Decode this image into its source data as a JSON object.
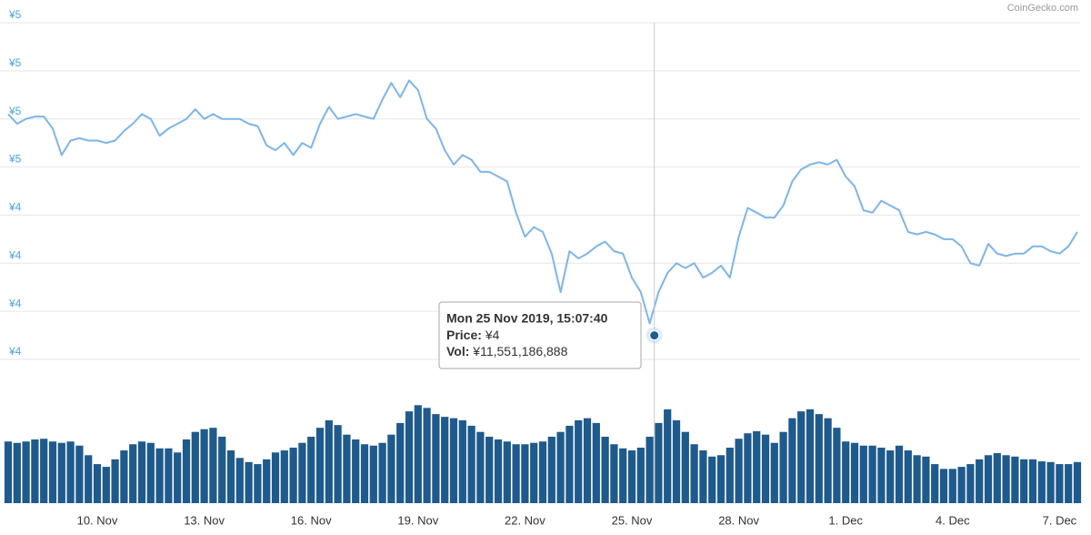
{
  "chart_data": {
    "type": "line",
    "credit": "CoinGecko.com",
    "x": [
      "2019-11-07T12:00",
      "2019-11-07T18:00",
      "2019-11-08T00:00",
      "2019-11-08T06:00",
      "2019-11-08T12:00",
      "2019-11-08T18:00",
      "2019-11-09T00:00",
      "2019-11-09T06:00",
      "2019-11-09T12:00",
      "2019-11-09T18:00",
      "2019-11-10T00:00",
      "2019-11-10T06:00",
      "2019-11-10T12:00",
      "2019-11-10T18:00",
      "2019-11-11T00:00",
      "2019-11-11T06:00",
      "2019-11-11T12:00",
      "2019-11-11T18:00",
      "2019-11-12T00:00",
      "2019-11-12T06:00",
      "2019-11-12T12:00",
      "2019-11-12T18:00",
      "2019-11-13T00:00",
      "2019-11-13T06:00",
      "2019-11-13T12:00",
      "2019-11-13T18:00",
      "2019-11-14T00:00",
      "2019-11-14T06:00",
      "2019-11-14T12:00",
      "2019-11-14T18:00",
      "2019-11-15T00:00",
      "2019-11-15T06:00",
      "2019-11-15T12:00",
      "2019-11-15T18:00",
      "2019-11-16T00:00",
      "2019-11-16T06:00",
      "2019-11-16T12:00",
      "2019-11-16T18:00",
      "2019-11-17T00:00",
      "2019-11-17T06:00",
      "2019-11-17T12:00",
      "2019-11-17T18:00",
      "2019-11-18T00:00",
      "2019-11-18T06:00",
      "2019-11-18T12:00",
      "2019-11-18T18:00",
      "2019-11-19T00:00",
      "2019-11-19T06:00",
      "2019-11-19T12:00",
      "2019-11-19T18:00",
      "2019-11-20T00:00",
      "2019-11-20T06:00",
      "2019-11-20T12:00",
      "2019-11-20T18:00",
      "2019-11-21T00:00",
      "2019-11-21T06:00",
      "2019-11-21T12:00",
      "2019-11-21T18:00",
      "2019-11-22T00:00",
      "2019-11-22T06:00",
      "2019-11-22T12:00",
      "2019-11-22T18:00",
      "2019-11-23T00:00",
      "2019-11-23T06:00",
      "2019-11-23T12:00",
      "2019-11-23T18:00",
      "2019-11-24T00:00",
      "2019-11-24T06:00",
      "2019-11-24T12:00",
      "2019-11-24T18:00",
      "2019-11-25T00:00",
      "2019-11-25T06:00",
      "2019-11-25T12:00",
      "2019-11-25T18:00",
      "2019-11-26T00:00",
      "2019-11-26T06:00",
      "2019-11-26T12:00",
      "2019-11-26T18:00",
      "2019-11-27T00:00",
      "2019-11-27T06:00",
      "2019-11-27T12:00",
      "2019-11-27T18:00",
      "2019-11-28T00:00",
      "2019-11-28T06:00",
      "2019-11-28T12:00",
      "2019-11-28T18:00",
      "2019-11-29T00:00",
      "2019-11-29T06:00",
      "2019-11-29T12:00",
      "2019-11-29T18:00",
      "2019-11-30T00:00",
      "2019-11-30T06:00",
      "2019-11-30T12:00",
      "2019-11-30T18:00",
      "2019-12-01T00:00",
      "2019-12-01T06:00",
      "2019-12-01T12:00",
      "2019-12-01T18:00",
      "2019-12-02T00:00",
      "2019-12-02T06:00",
      "2019-12-02T12:00",
      "2019-12-02T18:00",
      "2019-12-03T00:00",
      "2019-12-03T06:00",
      "2019-12-03T12:00",
      "2019-12-03T18:00",
      "2019-12-04T00:00",
      "2019-12-04T06:00",
      "2019-12-04T12:00",
      "2019-12-04T18:00",
      "2019-12-05T00:00",
      "2019-12-05T06:00",
      "2019-12-05T12:00",
      "2019-12-05T18:00",
      "2019-12-06T00:00",
      "2019-12-06T06:00",
      "2019-12-06T12:00",
      "2019-12-06T18:00",
      "2019-12-07T00:00",
      "2019-12-07T06:00",
      "2019-12-07T12:00"
    ],
    "series": [
      {
        "name": "Price",
        "color": "#7cb5ec",
        "values": [
          4.82,
          4.78,
          4.8,
          4.81,
          4.81,
          4.76,
          4.65,
          4.71,
          4.72,
          4.71,
          4.71,
          4.7,
          4.71,
          4.75,
          4.78,
          4.82,
          4.8,
          4.73,
          4.76,
          4.78,
          4.8,
          4.84,
          4.8,
          4.82,
          4.8,
          4.8,
          4.8,
          4.78,
          4.77,
          4.69,
          4.67,
          4.7,
          4.65,
          4.7,
          4.68,
          4.78,
          4.85,
          4.8,
          4.81,
          4.82,
          4.81,
          4.8,
          4.88,
          4.95,
          4.89,
          4.96,
          4.92,
          4.8,
          4.76,
          4.67,
          4.61,
          4.65,
          4.63,
          4.58,
          4.58,
          4.56,
          4.54,
          4.41,
          4.31,
          4.35,
          4.33,
          4.24,
          4.08,
          4.25,
          4.22,
          4.24,
          4.27,
          4.29,
          4.25,
          4.24,
          4.14,
          4.08,
          3.95,
          4.08,
          4.16,
          4.2,
          4.18,
          4.2,
          4.14,
          4.16,
          4.19,
          4.14,
          4.31,
          4.43,
          4.41,
          4.39,
          4.39,
          4.44,
          4.54,
          4.59,
          4.61,
          4.62,
          4.61,
          4.63,
          4.56,
          4.52,
          4.42,
          4.41,
          4.46,
          4.44,
          4.42,
          4.33,
          4.32,
          4.33,
          4.32,
          4.3,
          4.3,
          4.27,
          4.2,
          4.19,
          4.28,
          4.24,
          4.23,
          4.24,
          4.24,
          4.27,
          4.27,
          4.25,
          4.24,
          4.27,
          4.33
        ]
      },
      {
        "name": "Vol",
        "color": "#1f5a8d",
        "type": "bar",
        "values": [
          9000000000.0,
          8800000000.0,
          9000000000.0,
          9300000000.0,
          9400000000.0,
          9000000000.0,
          8800000000.0,
          9000000000.0,
          8400000000.0,
          7000000000.0,
          5700000000.0,
          5300000000.0,
          6400000000.0,
          7700000000.0,
          8600000000.0,
          9000000000.0,
          8800000000.0,
          8000000000.0,
          8000000000.0,
          7400000000.0,
          9300000000.0,
          10400000000.0,
          10800000000.0,
          11000000000.0,
          9700000000.0,
          7700000000.0,
          6600000000.0,
          6000000000.0,
          5700000000.0,
          6400000000.0,
          7400000000.0,
          7700000000.0,
          8100000000.0,
          8800000000.0,
          9700000000.0,
          11000000000.0,
          12100000000.0,
          11400000000.0,
          10000000000.0,
          9300000000.0,
          8600000000.0,
          8400000000.0,
          8800000000.0,
          10000000000.0,
          11700000000.0,
          13400000000.0,
          14300000000.0,
          13900000000.0,
          13000000000.0,
          12600000000.0,
          12400000000.0,
          12100000000.0,
          11300000000.0,
          10400000000.0,
          9700000000.0,
          9300000000.0,
          9000000000.0,
          8600000000.0,
          8600000000.0,
          8800000000.0,
          9000000000.0,
          9700000000.0,
          10400000000.0,
          11300000000.0,
          12100000000.0,
          12400000000.0,
          11700000000.0,
          9700000000.0,
          8600000000.0,
          8000000000.0,
          7700000000.0,
          8100000000.0,
          9700000000.0,
          11700000000.0,
          13700000000.0,
          12100000000.0,
          10400000000.0,
          8600000000.0,
          7700000000.0,
          6800000000.0,
          7000000000.0,
          8100000000.0,
          9400000000.0,
          10200000000.0,
          10500000000.0,
          10000000000.0,
          8800000000.0,
          10400000000.0,
          12400000000.0,
          13400000000.0,
          13700000000.0,
          13000000000.0,
          12400000000.0,
          11000000000.0,
          9000000000.0,
          8800000000.0,
          8400000000.0,
          8400000000.0,
          8100000000.0,
          7700000000.0,
          8400000000.0,
          7700000000.0,
          7000000000.0,
          6800000000.0,
          5700000000.0,
          5000000000.0,
          5000000000.0,
          5300000000.0,
          5700000000.0,
          6400000000.0,
          7000000000.0,
          7300000000.0,
          7000000000.0,
          6800000000.0,
          6400000000.0,
          6400000000.0,
          6100000000.0,
          6000000000.0,
          5700000000.0,
          5700000000.0,
          6000000000.0
        ]
      }
    ],
    "xlim": [
      "2019-11-07T12:00",
      "2019-12-07T12:00"
    ],
    "xticks": [
      {
        "value": "2019-11-10T00:00",
        "label": "10. Nov"
      },
      {
        "value": "2019-11-13T00:00",
        "label": "13. Nov"
      },
      {
        "value": "2019-11-16T00:00",
        "label": "16. Nov"
      },
      {
        "value": "2019-11-19T00:00",
        "label": "19. Nov"
      },
      {
        "value": "2019-11-22T00:00",
        "label": "22. Nov"
      },
      {
        "value": "2019-11-25T00:00",
        "label": "25. Nov"
      },
      {
        "value": "2019-11-28T00:00",
        "label": "28. Nov"
      },
      {
        "value": "2019-12-01T00:00",
        "label": "1. Dec"
      },
      {
        "value": "2019-12-04T00:00",
        "label": "4. Dec"
      },
      {
        "value": "2019-12-07T00:00",
        "label": "7. Dec"
      }
    ],
    "ylim": [
      3.8,
      5.2
    ],
    "yticks": [
      {
        "value": 5.2,
        "label": "¥5"
      },
      {
        "value": 5.0,
        "label": "¥5"
      },
      {
        "value": 4.8,
        "label": "¥5"
      },
      {
        "value": 4.6,
        "label": "¥5"
      },
      {
        "value": 4.4,
        "label": "¥4"
      },
      {
        "value": 4.2,
        "label": "¥4"
      },
      {
        "value": 4.0,
        "label": "¥4"
      },
      {
        "value": 3.8,
        "label": "¥4"
      }
    ],
    "y2lim": [
      0,
      17000000000
    ],
    "grid": true,
    "tooltip": {
      "x": "2019-11-25T15:07:40",
      "title": "Mon 25 Nov 2019, 15:07:40",
      "price": {
        "label": "Price:",
        "value": 3.9,
        "value_label": "¥4"
      },
      "volume": {
        "label": "Vol:",
        "value": 11551186888,
        "value_label": "¥11,551,186,888"
      }
    }
  }
}
